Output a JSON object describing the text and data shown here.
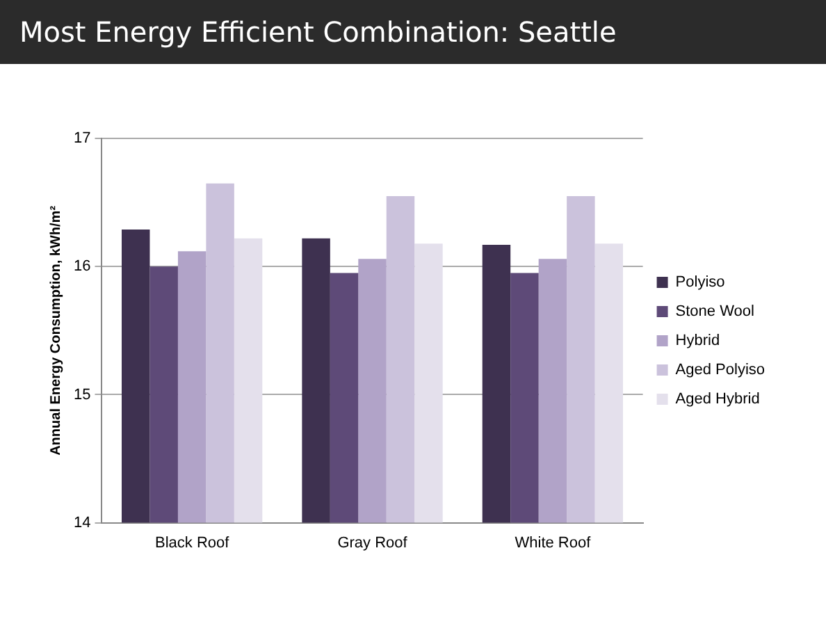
{
  "chart_data": {
    "type": "bar",
    "title": "Most Energy Efficient Combination: Seattle",
    "ylabel": "Annual Energy Consumption, kWh/m²",
    "categories": [
      "Black Roof",
      "Gray Roof",
      "White Roof"
    ],
    "series": [
      {
        "name": "Polyiso",
        "color": "#3e3150",
        "values": [
          16.29,
          16.22,
          16.17
        ]
      },
      {
        "name": "Stone Wool",
        "color": "#5e4a78",
        "values": [
          16.0,
          15.95,
          15.95
        ]
      },
      {
        "name": "Hybrid",
        "color": "#b1a3c8",
        "values": [
          16.12,
          16.06,
          16.06
        ]
      },
      {
        "name": "Aged Polyiso",
        "color": "#cbc2dc",
        "values": [
          16.65,
          16.55,
          16.55
        ]
      },
      {
        "name": "Aged Hybrid",
        "color": "#e4e0ec",
        "values": [
          16.22,
          16.18,
          16.18
        ]
      }
    ],
    "ylim": [
      14,
      17
    ],
    "yticks": [
      14,
      15,
      16,
      17
    ],
    "grid": "y",
    "legend": "right"
  }
}
